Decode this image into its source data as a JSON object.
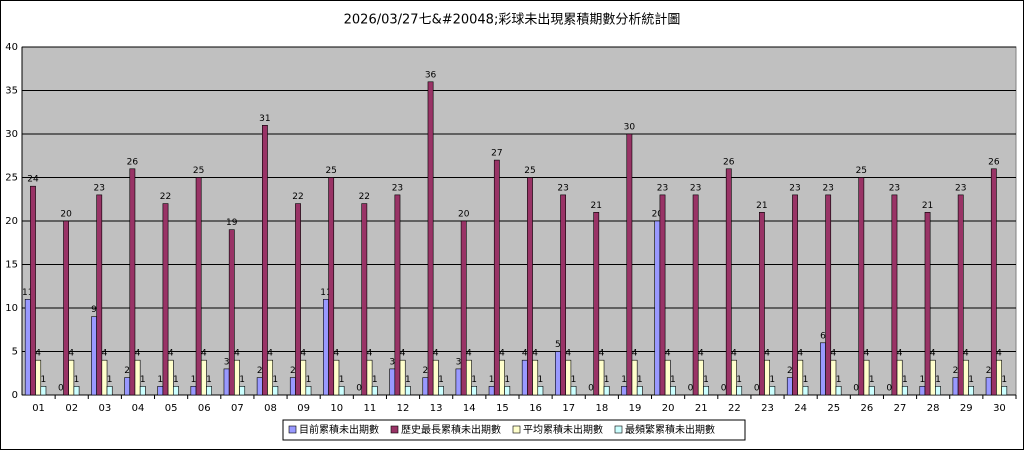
{
  "chart_data": {
    "type": "bar",
    "title": "2026/03/27七&#20048;彩球未出現累積期數分析統計圖",
    "categories": [
      "01",
      "02",
      "03",
      "04",
      "05",
      "06",
      "07",
      "08",
      "09",
      "10",
      "11",
      "12",
      "13",
      "14",
      "15",
      "16",
      "17",
      "18",
      "19",
      "20",
      "21",
      "22",
      "23",
      "24",
      "25",
      "26",
      "27",
      "28",
      "29",
      "30"
    ],
    "series": [
      {
        "name": "目前累積未出期數",
        "color": "#9999ff",
        "values": [
          11,
          0,
          9,
          2,
          1,
          1,
          3,
          2,
          2,
          11,
          0,
          3,
          2,
          3,
          1,
          4,
          5,
          0,
          1,
          20,
          0,
          0,
          0,
          2,
          6,
          0,
          0,
          1,
          2,
          2
        ]
      },
      {
        "name": "歷史最長累積未出期數",
        "color": "#993366",
        "values": [
          24,
          20,
          23,
          26,
          22,
          25,
          19,
          31,
          22,
          25,
          22,
          23,
          36,
          20,
          27,
          25,
          23,
          21,
          30,
          23,
          23,
          26,
          21,
          23,
          23,
          25,
          23,
          21,
          23,
          26
        ]
      },
      {
        "name": "平均累積未出期數",
        "color": "#ffffcc",
        "values": [
          4,
          4,
          4,
          4,
          4,
          4,
          4,
          4,
          4,
          4,
          4,
          4,
          4,
          4,
          4,
          4,
          4,
          4,
          4,
          4,
          4,
          4,
          4,
          4,
          4,
          4,
          4,
          4,
          4,
          4
        ]
      },
      {
        "name": "最頻繁累積未出期數",
        "color": "#ccffff",
        "values": [
          1,
          1,
          1,
          1,
          1,
          1,
          1,
          1,
          1,
          1,
          1,
          1,
          1,
          1,
          1,
          1,
          1,
          1,
          1,
          1,
          1,
          1,
          1,
          1,
          1,
          1,
          1,
          1,
          1,
          1
        ]
      }
    ],
    "ylim": [
      0,
      40
    ],
    "yticks": [
      0,
      5,
      10,
      15,
      20,
      25,
      30,
      35,
      40
    ],
    "grid": true,
    "legend": "bottom"
  }
}
